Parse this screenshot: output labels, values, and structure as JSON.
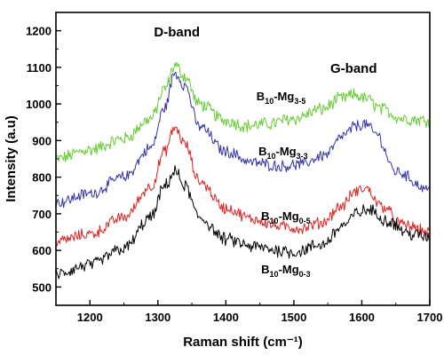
{
  "chart_data": {
    "type": "line",
    "xlabel": "Raman shift (cm⁻¹)",
    "ylabel": "Intensity (a.u)",
    "xlim": [
      1150,
      1700
    ],
    "ylim": [
      450,
      1250
    ],
    "xticks": [
      1200,
      1300,
      1400,
      1500,
      1600,
      1700
    ],
    "yticks": [
      500,
      600,
      700,
      800,
      900,
      1000,
      1100,
      1200
    ],
    "grid": false,
    "legend": "none",
    "annotations": [
      {
        "text": "D-band",
        "x": 1328,
        "y": 1185
      },
      {
        "text": "G-band",
        "x": 1588,
        "y": 1085
      }
    ],
    "series": [
      {
        "label_main": "B",
        "label_sub1": "10",
        "label_mid": "-Mg",
        "label_sub2": "3-5",
        "label_x": 1445,
        "label_y": 1010,
        "color": "#66cc33",
        "x": [
          1150,
          1200,
          1250,
          1290,
          1310,
          1325,
          1340,
          1360,
          1400,
          1430,
          1460,
          1500,
          1540,
          1570,
          1590,
          1605,
          1630,
          1660,
          1700
        ],
        "y": [
          850,
          875,
          905,
          960,
          1040,
          1105,
          1075,
          1000,
          955,
          940,
          945,
          960,
          985,
          1015,
          1025,
          1015,
          985,
          960,
          955
        ],
        "noise": 16
      },
      {
        "label_main": "B",
        "label_sub1": "10",
        "label_mid": "-Mg",
        "label_sub2": "3-3",
        "label_x": 1448,
        "label_y": 860,
        "color": "#3333aa",
        "x": [
          1150,
          1200,
          1250,
          1290,
          1310,
          1325,
          1340,
          1360,
          1400,
          1440,
          1480,
          1510,
          1545,
          1575,
          1590,
          1605,
          1620,
          1650,
          1700
        ],
        "y": [
          730,
          755,
          800,
          880,
          990,
          1085,
          1050,
          940,
          870,
          840,
          830,
          835,
          860,
          915,
          940,
          945,
          920,
          815,
          765
        ],
        "noise": 14
      },
      {
        "label_main": "B",
        "label_sub1": "10",
        "label_mid": "-Mg",
        "label_sub2": "0-5",
        "label_x": 1452,
        "label_y": 683,
        "color": "#dd2222",
        "x": [
          1150,
          1200,
          1250,
          1290,
          1310,
          1325,
          1340,
          1360,
          1400,
          1440,
          1480,
          1510,
          1540,
          1570,
          1590,
          1605,
          1630,
          1660,
          1700
        ],
        "y": [
          625,
          645,
          690,
          775,
          870,
          935,
          890,
          790,
          715,
          685,
          665,
          660,
          675,
          720,
          760,
          770,
          720,
          670,
          650
        ],
        "noise": 14
      },
      {
        "label_main": "B",
        "label_sub1": "10",
        "label_mid": "-Mg",
        "label_sub2": "0-3",
        "label_x": 1452,
        "label_y": 537,
        "color": "#000000",
        "x": [
          1150,
          1200,
          1250,
          1290,
          1310,
          1325,
          1340,
          1360,
          1400,
          1440,
          1480,
          1500,
          1540,
          1575,
          1595,
          1610,
          1640,
          1670,
          1700
        ],
        "y": [
          535,
          560,
          605,
          690,
          775,
          815,
          775,
          690,
          630,
          610,
          600,
          595,
          615,
          670,
          705,
          710,
          680,
          645,
          635
        ],
        "noise": 16
      }
    ]
  }
}
